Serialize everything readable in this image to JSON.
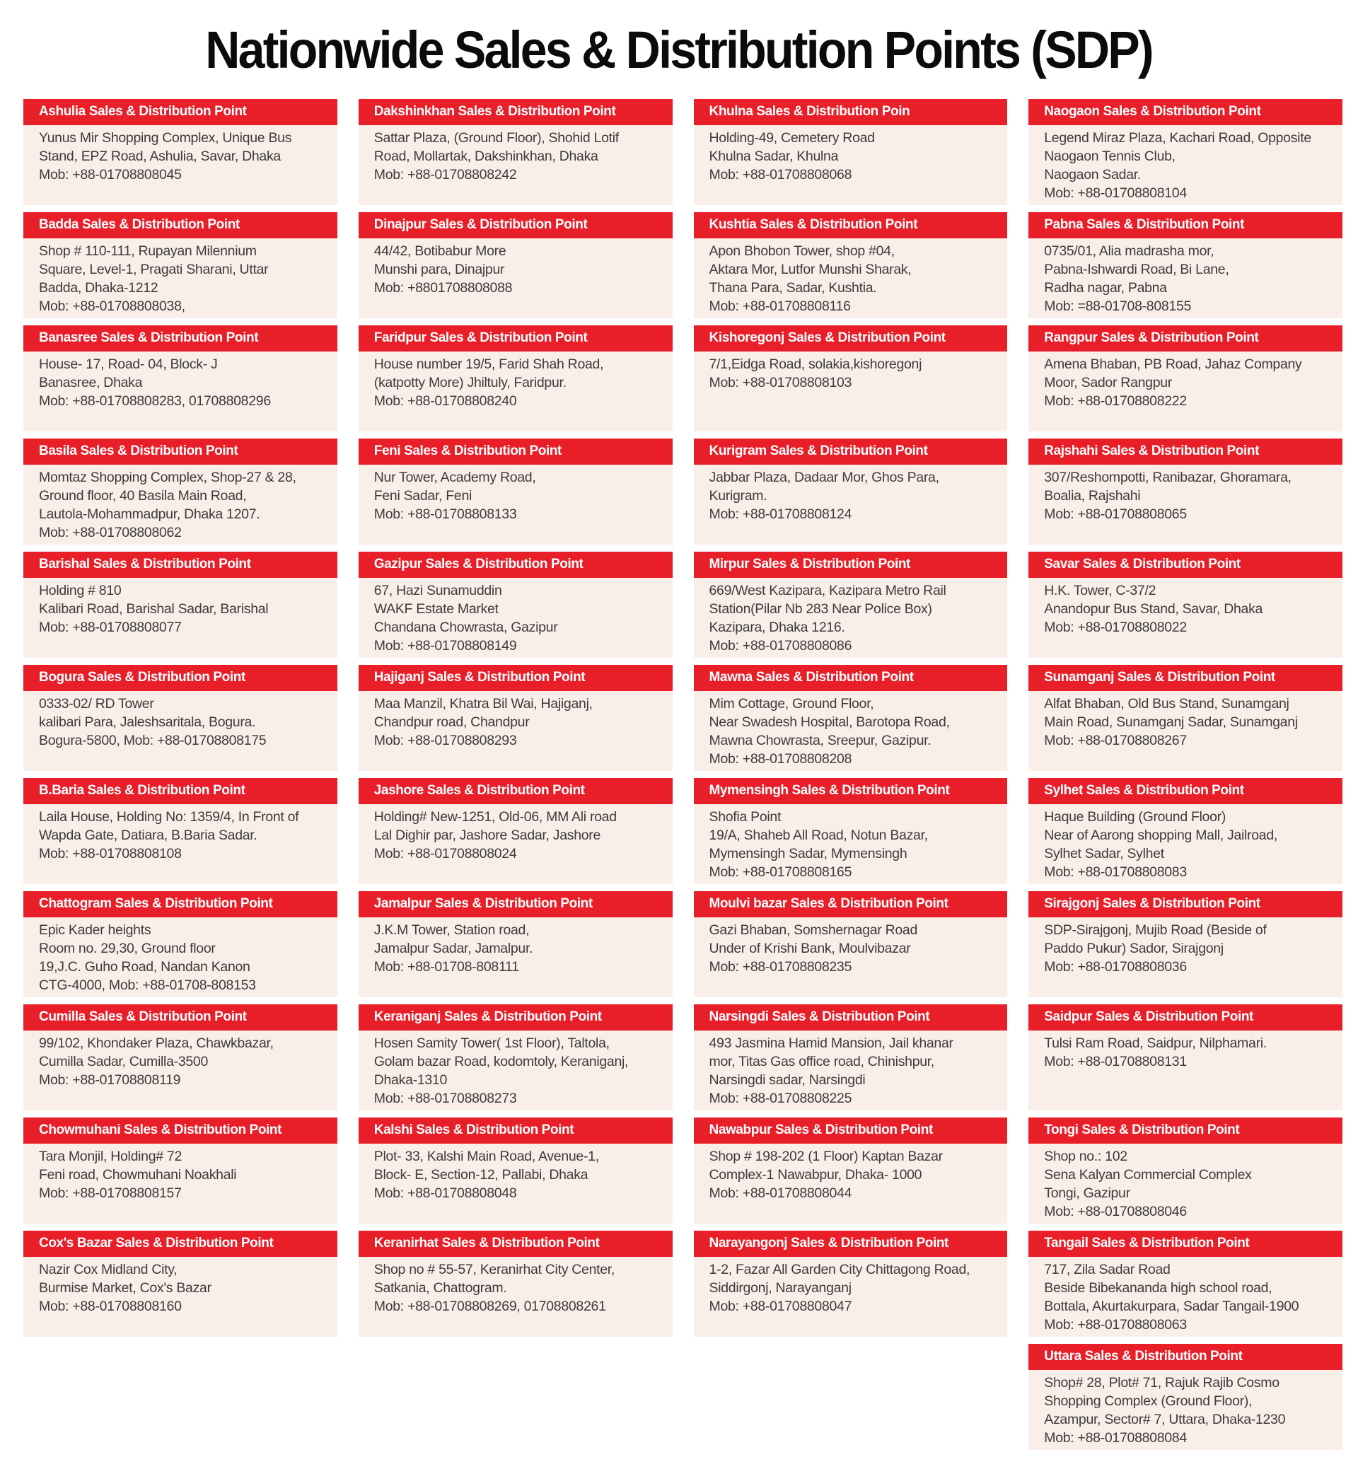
{
  "title": "Nationwide Sales & Distribution Points (SDP)",
  "colors": {
    "accent_red": "#e81e29",
    "card_bg": "#faeee9",
    "text": "#3c3c3c"
  },
  "columns": [
    [
      {
        "header": "Ashulia Sales & Distribution Point",
        "lines": [
          "Yunus Mir Shopping Complex, Unique Bus",
          "Stand, EPZ Road, Ashulia, Savar, Dhaka",
          "Mob: +88-01708808045"
        ]
      },
      {
        "header": "Badda Sales & Distribution Point",
        "lines": [
          "Shop # 110-111, Rupayan Milennium",
          "Square, Level-1, Pragati Sharani, Uttar",
          "Badda, Dhaka-1212",
          "Mob: +88-01708808038,"
        ]
      },
      {
        "header": "Banasree Sales & Distribution Point",
        "lines": [
          "House- 17, Road- 04, Block- J",
          "Banasree, Dhaka",
          "Mob: +88-01708808283, 01708808296"
        ]
      },
      {
        "header": "Basila Sales & Distribution Point",
        "lines": [
          "Momtaz Shopping Complex, Shop-27 & 28,",
          "Ground floor, 40 Basila Main Road,",
          "Lautola-Mohammadpur, Dhaka 1207.",
          "Mob: +88-01708808062"
        ]
      },
      {
        "header": "Barishal Sales & Distribution Point",
        "lines": [
          "Holding # 810",
          "Kalibari Road, Barishal Sadar, Barishal",
          "Mob: +88-01708808077"
        ]
      },
      {
        "header": "Bogura Sales & Distribution Point",
        "lines": [
          "0333-02/ RD Tower",
          "kalibari Para, Jaleshsaritala, Bogura.",
          "Bogura-5800, Mob: +88-01708808175"
        ]
      },
      {
        "header": "B.Baria Sales & Distribution Point",
        "lines": [
          "Laila House, Holding No: 1359/4, In Front of",
          "Wapda Gate, Datiara, B.Baria Sadar.",
          "Mob: +88-01708808108"
        ]
      },
      {
        "header": "Chattogram Sales & Distribution Point",
        "lines": [
          "Epic Kader heights",
          "Room no. 29,30, Ground floor",
          "19,J.C. Guho Road, Nandan Kanon",
          "CTG-4000, Mob: +88-01708-808153"
        ]
      },
      {
        "header": "Cumilla Sales & Distribution Point",
        "lines": [
          "99/102, Khondaker Plaza, Chawkbazar,",
          "Cumilla Sadar, Cumilla-3500",
          "Mob: +88-01708808119"
        ]
      },
      {
        "header": "Chowmuhani Sales & Distribution Point",
        "lines": [
          "Tara Monjil, Holding# 72",
          "Feni road, Chowmuhani Noakhali",
          "Mob: +88-01708808157"
        ]
      },
      {
        "header": "Cox's Bazar Sales & Distribution Point",
        "lines": [
          "Nazir Cox Midland City,",
          "Burmise Market, Cox's Bazar",
          "Mob: +88-01708808160"
        ]
      }
    ],
    [
      {
        "header": "Dakshinkhan Sales & Distribution Point",
        "lines": [
          "Sattar Plaza, (Ground Floor), Shohid Lotif",
          "Road, Mollartak, Dakshinkhan, Dhaka",
          "Mob: +88-01708808242"
        ]
      },
      {
        "header": "Dinajpur Sales & Distribution Point",
        "lines": [
          "44/42, Botibabur More",
          "Munshi para, Dinajpur",
          "Mob: +8801708808088"
        ]
      },
      {
        "header": "Faridpur Sales & Distribution Point",
        "lines": [
          "House number 19/5, Farid Shah Road,",
          "(katpotty More) Jhiltuly, Faridpur.",
          "Mob: +88-01708808240"
        ]
      },
      {
        "header": "Feni Sales & Distribution Point",
        "lines": [
          "Nur Tower, Academy Road,",
          "Feni Sadar, Feni",
          "Mob: +88-01708808133"
        ]
      },
      {
        "header": "Gazipur Sales & Distribution Point",
        "lines": [
          "67, Hazi Sunamuddin",
          "WAKF Estate Market",
          "Chandana Chowrasta, Gazipur",
          "Mob: +88-01708808149"
        ]
      },
      {
        "header": "Hajiganj Sales & Distribution Point",
        "lines": [
          "Maa Manzil, Khatra Bil Wai, Hajiganj,",
          "Chandpur road, Chandpur",
          "Mob: +88-01708808293"
        ]
      },
      {
        "header": "Jashore Sales & Distribution Point",
        "lines": [
          "Holding# New-1251, Old-06, MM Ali road",
          "Lal Dighir par, Jashore Sadar, Jashore",
          "Mob: +88-01708808024"
        ]
      },
      {
        "header": "Jamalpur Sales & Distribution Point",
        "lines": [
          "J.K.M Tower, Station road,",
          "Jamalpur Sadar, Jamalpur.",
          "Mob: +88-01708-808111"
        ]
      },
      {
        "header": "Keraniganj Sales & Distribution Point",
        "lines": [
          "Hosen Samity Tower( 1st Floor), Taltola,",
          "Golam bazar Road, kodomtoly, Keraniganj,",
          "Dhaka-1310",
          "Mob: +88-01708808273"
        ]
      },
      {
        "header": "Kalshi Sales & Distribution Point",
        "lines": [
          "Plot- 33, Kalshi Main Road, Avenue-1,",
          "Block- E, Section-12, Pallabi, Dhaka",
          "Mob: +88-01708808048"
        ]
      },
      {
        "header": "Keranirhat Sales & Distribution Point",
        "lines": [
          "Shop no # 55-57, Keranirhat City Center,",
          "Satkania, Chattogram.",
          "Mob: +88-01708808269, 01708808261"
        ]
      }
    ],
    [
      {
        "header": "Khulna Sales & Distribution Poin",
        "lines": [
          "Holding-49, Cemetery Road",
          "Khulna Sadar, Khulna",
          "Mob: +88-01708808068"
        ]
      },
      {
        "header": "Kushtia Sales & Distribution Point",
        "lines": [
          "Apon Bhobon Tower, shop #04,",
          "Aktara Mor, Lutfor Munshi Sharak,",
          "Thana Para, Sadar, Kushtia.",
          "Mob: +88-01708808116"
        ]
      },
      {
        "header": "Kishoregonj Sales & Distribution Point",
        "lines": [
          "7/1,Eidga Road, solakia,kishoregonj",
          "Mob: +88-01708808103"
        ]
      },
      {
        "header": "Kurigram Sales & Distribution Point",
        "lines": [
          "Jabbar Plaza, Dadaar Mor, Ghos Para,",
          "Kurigram.",
          "Mob: +88-01708808124"
        ]
      },
      {
        "header": "Mirpur Sales & Distribution Point",
        "lines": [
          "669/West Kazipara, Kazipara Metro Rail",
          "Station(Pilar Nb 283 Near Police Box)",
          "Kazipara, Dhaka 1216.",
          "Mob: +88-01708808086"
        ]
      },
      {
        "header": "Mawna Sales & Distribution Point",
        "lines": [
          "Mim Cottage, Ground Floor,",
          "Near Swadesh Hospital, Barotopa Road,",
          "Mawna Chowrasta, Sreepur, Gazipur.",
          "Mob: +88-01708808208"
        ]
      },
      {
        "header": "Mymensingh Sales & Distribution Point",
        "lines": [
          "Shofia Point",
          "19/A, Shaheb All Road, Notun Bazar,",
          "Mymensingh Sadar, Mymensingh",
          "Mob: +88-01708808165"
        ]
      },
      {
        "header": "Moulvi bazar Sales & Distribution Point",
        "lines": [
          "Gazi Bhaban, Somshernagar Road",
          "Under of Krishi Bank, Moulvibazar",
          "Mob: +88-01708808235"
        ]
      },
      {
        "header": "Narsingdi Sales & Distribution Point",
        "lines": [
          "493 Jasmina Hamid Mansion, Jail khanar",
          "mor, Titas Gas office road, Chinishpur,",
          "Narsingdi sadar, Narsingdi",
          "Mob: +88-01708808225"
        ]
      },
      {
        "header": "Nawabpur Sales & Distribution Point",
        "lines": [
          "Shop # 198-202 (1 Floor) Kaptan Bazar",
          "Complex-1 Nawabpur, Dhaka- 1000",
          "Mob: +88-01708808044"
        ]
      },
      {
        "header": "Narayangonj Sales & Distribution Point",
        "lines": [
          "1-2, Fazar All Garden City Chittagong Road,",
          "Siddirgonj, Narayanganj",
          "Mob: +88-01708808047"
        ]
      }
    ],
    [
      {
        "header": "Naogaon Sales & Distribution Point",
        "lines": [
          "Legend Miraz Plaza, Kachari Road, Opposite",
          "Naogaon Tennis Club,",
          "Naogaon Sadar.",
          "Mob: +88-01708808104"
        ]
      },
      {
        "header": "Pabna Sales & Distribution Point",
        "lines": [
          "0735/01, Alia madrasha mor,",
          "Pabna-Ishwardi Road, Bi Lane,",
          "Radha nagar, Pabna",
          "Mob: =88-01708-808155"
        ]
      },
      {
        "header": "Rangpur Sales & Distribution Point",
        "lines": [
          "Amena Bhaban, PB Road, Jahaz Company",
          "Moor, Sador Rangpur",
          "Mob: +88-01708808222"
        ]
      },
      {
        "header": "Rajshahi Sales & Distribution Point",
        "lines": [
          "307/Reshompotti, Ranibazar, Ghoramara,",
          "Boalia, Rajshahi",
          "Mob: +88-01708808065"
        ]
      },
      {
        "header": "Savar Sales & Distribution Point",
        "lines": [
          "H.K. Tower, C-37/2",
          "Anandopur Bus Stand, Savar, Dhaka",
          "Mob: +88-01708808022"
        ]
      },
      {
        "header": "Sunamganj Sales & Distribution Point",
        "lines": [
          "Alfat Bhaban, Old Bus Stand, Sunamganj",
          "Main Road, Sunamganj Sadar, Sunamganj",
          "Mob: +88-01708808267"
        ]
      },
      {
        "header": "Sylhet Sales & Distribution Point",
        "lines": [
          "Haque Building (Ground Floor)",
          "Near of Aarong shopping Mall, Jailroad,",
          "Sylhet Sadar, Sylhet",
          "Mob: +88-01708808083"
        ]
      },
      {
        "header": "Sirajgonj Sales & Distribution Point",
        "lines": [
          "SDP-Sirajgonj, Mujib Road (Beside of",
          "Paddo Pukur) Sador, Sirajgonj",
          "Mob: +88-01708808036"
        ]
      },
      {
        "header": "Saidpur Sales & Distribution Point",
        "lines": [
          "Tulsi Ram Road, Saidpur, Nilphamari.",
          "Mob: +88-01708808131"
        ]
      },
      {
        "header": "Tongi Sales & Distribution Point",
        "lines": [
          "Shop no.: 102",
          "Sena Kalyan Commercial Complex",
          "Tongi, Gazipur",
          "Mob: +88-01708808046"
        ]
      },
      {
        "header": "Tangail Sales & Distribution Point",
        "lines": [
          "717, Zila Sadar Road",
          "Beside Bibekananda high school road,",
          "Bottala, Akurtakurpara, Sadar Tangail-1900",
          "Mob: +88-01708808063"
        ]
      },
      {
        "header": "Uttara Sales & Distribution Point",
        "lines": [
          "Shop# 28, Plot# 71, Rajuk Rajib Cosmo",
          "Shopping Complex (Ground Floor),",
          "Azampur, Sector# 7, Uttara, Dhaka-1230",
          "Mob: +88-01708808084"
        ]
      }
    ]
  ]
}
